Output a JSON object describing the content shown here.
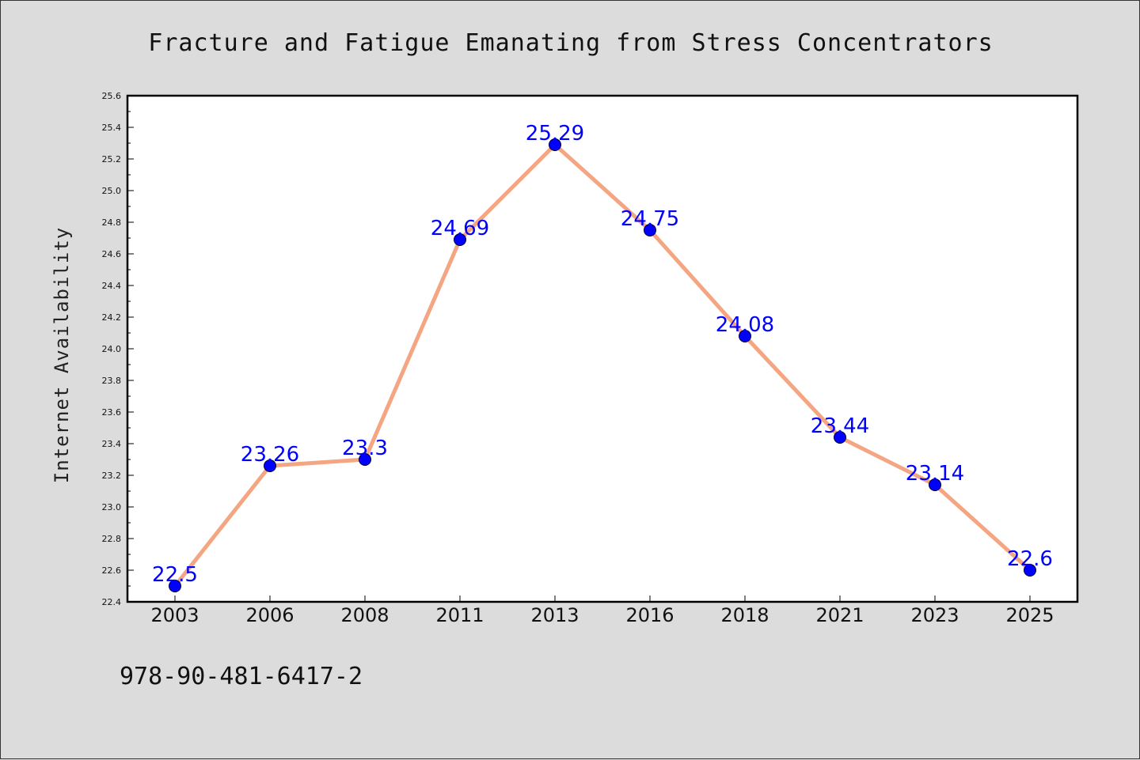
{
  "chart_data": {
    "type": "line",
    "title": "Fracture and Fatigue Emanating from Stress Concentrators",
    "xlabel": "",
    "ylabel": "Internet Availability",
    "categories": [
      "2003",
      "2006",
      "2008",
      "2011",
      "2013",
      "2016",
      "2018",
      "2021",
      "2023",
      "2025"
    ],
    "series": [
      {
        "values": [
          22.5,
          23.26,
          23.3,
          24.69,
          25.29,
          24.75,
          24.08,
          23.44,
          23.14,
          22.6
        ],
        "data_labels": [
          "22.5",
          "23.26",
          "23.3",
          "24.69",
          "25.29",
          "24.75",
          "24.08",
          "23.44",
          "23.14",
          "22.6"
        ]
      }
    ],
    "ylim": [
      22.4,
      25.6
    ],
    "yticks": [
      "22.4",
      "22.6",
      "22.8",
      "23.0",
      "23.2",
      "23.4",
      "23.6",
      "23.8",
      "24.0",
      "24.2",
      "24.4",
      "24.6",
      "24.8",
      "25.0",
      "25.2",
      "25.4",
      "25.6"
    ],
    "grid": false,
    "legend": "none",
    "colors": {
      "line": "#f4a582",
      "marker": "#0000ff",
      "label": "#0000ff",
      "background": "#dcdcdc",
      "plot_background": "#ffffff"
    }
  },
  "footer": {
    "isbn": "978-90-481-6417-2"
  }
}
